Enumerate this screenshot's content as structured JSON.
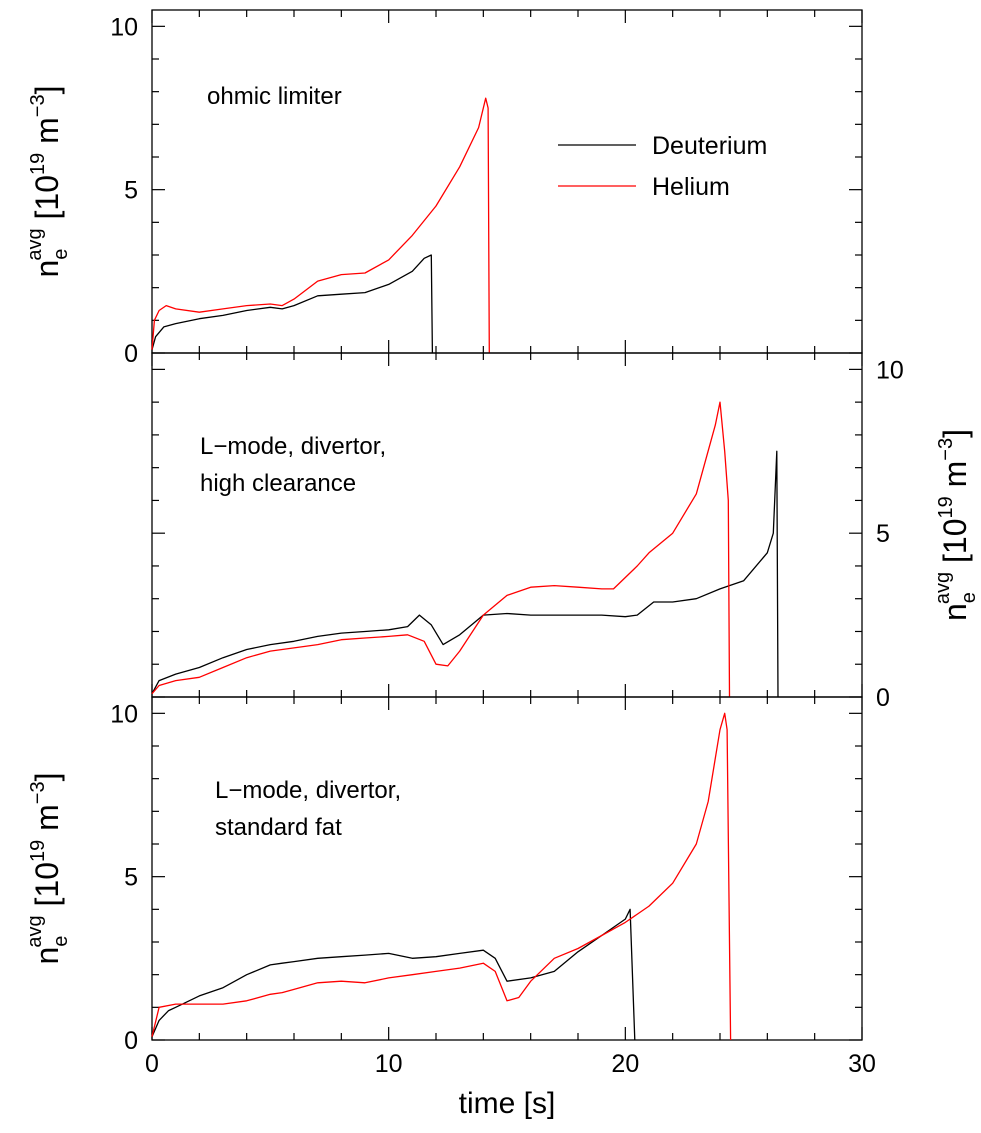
{
  "chart_data": {
    "type": "line",
    "xlabel": "time [s]",
    "xlim": [
      0,
      30
    ],
    "x_ticks": [
      "0",
      "10",
      "20",
      "30"
    ],
    "y_ticks": [
      "0",
      "5",
      "10"
    ],
    "ylabel": {
      "main": "n",
      "sub": "e",
      "sup": "avg",
      "unit_open": "[10",
      "unit_exp": "19",
      "unit_mid": " m",
      "unit_exp2": "−3",
      "unit_close": "]"
    },
    "legend": {
      "position": "top-right of top panel",
      "entries": [
        {
          "name": "Deuterium",
          "color": "#000000"
        },
        {
          "name": "Helium",
          "color": "#ff0000"
        }
      ]
    },
    "panels": [
      {
        "annotation": [
          "ohmic limiter"
        ],
        "ylim": [
          0,
          10.5
        ],
        "ylabel_side": "left",
        "series": [
          {
            "name": "Deuterium",
            "color": "#000000",
            "points": [
              [
                0,
                0.1
              ],
              [
                0.15,
                0.5
              ],
              [
                0.5,
                0.8
              ],
              [
                1,
                0.9
              ],
              [
                2,
                1.05
              ],
              [
                3,
                1.15
              ],
              [
                4,
                1.3
              ],
              [
                5,
                1.4
              ],
              [
                5.5,
                1.35
              ],
              [
                6,
                1.45
              ],
              [
                7,
                1.75
              ],
              [
                8,
                1.8
              ],
              [
                9,
                1.85
              ],
              [
                10,
                2.1
              ],
              [
                11,
                2.5
              ],
              [
                11.5,
                2.9
              ],
              [
                11.8,
                3.0
              ],
              [
                11.85,
                0.0
              ]
            ]
          },
          {
            "name": "Helium",
            "color": "#ff0000",
            "points": [
              [
                0,
                0.1
              ],
              [
                0.1,
                1.0
              ],
              [
                0.3,
                1.3
              ],
              [
                0.6,
                1.45
              ],
              [
                1,
                1.35
              ],
              [
                2,
                1.25
              ],
              [
                3,
                1.35
              ],
              [
                4,
                1.45
              ],
              [
                5,
                1.5
              ],
              [
                5.5,
                1.45
              ],
              [
                6,
                1.65
              ],
              [
                7,
                2.2
              ],
              [
                8,
                2.4
              ],
              [
                9,
                2.45
              ],
              [
                10,
                2.85
              ],
              [
                11,
                3.6
              ],
              [
                12,
                4.5
              ],
              [
                13,
                5.7
              ],
              [
                13.8,
                6.9
              ],
              [
                14.1,
                7.8
              ],
              [
                14.2,
                7.5
              ],
              [
                14.25,
                0.0
              ]
            ]
          }
        ]
      },
      {
        "annotation": [
          "L−mode, divertor,",
          "high clearance"
        ],
        "ylim": [
          0,
          10.5
        ],
        "ylabel_side": "right",
        "series": [
          {
            "name": "Deuterium",
            "color": "#000000",
            "points": [
              [
                0,
                0.1
              ],
              [
                0.3,
                0.5
              ],
              [
                1,
                0.7
              ],
              [
                2,
                0.9
              ],
              [
                3,
                1.2
              ],
              [
                4,
                1.45
              ],
              [
                5,
                1.6
              ],
              [
                6,
                1.7
              ],
              [
                7,
                1.85
              ],
              [
                8,
                1.95
              ],
              [
                9,
                2.0
              ],
              [
                10,
                2.05
              ],
              [
                10.8,
                2.15
              ],
              [
                11.3,
                2.5
              ],
              [
                11.8,
                2.2
              ],
              [
                12.3,
                1.6
              ],
              [
                13,
                1.9
              ],
              [
                14,
                2.5
              ],
              [
                15,
                2.55
              ],
              [
                16,
                2.5
              ],
              [
                17,
                2.5
              ],
              [
                18,
                2.5
              ],
              [
                19,
                2.5
              ],
              [
                20,
                2.45
              ],
              [
                20.5,
                2.5
              ],
              [
                21.2,
                2.9
              ],
              [
                22,
                2.9
              ],
              [
                23,
                3.0
              ],
              [
                24,
                3.3
              ],
              [
                25,
                3.55
              ],
              [
                26,
                4.4
              ],
              [
                26.25,
                5.0
              ],
              [
                26.4,
                7.5
              ],
              [
                26.45,
                0.0
              ]
            ]
          },
          {
            "name": "Helium",
            "color": "#ff0000",
            "points": [
              [
                0,
                0.1
              ],
              [
                0.3,
                0.35
              ],
              [
                1,
                0.5
              ],
              [
                2,
                0.6
              ],
              [
                3,
                0.9
              ],
              [
                4,
                1.2
              ],
              [
                5,
                1.4
              ],
              [
                6,
                1.5
              ],
              [
                7,
                1.6
              ],
              [
                8,
                1.75
              ],
              [
                9,
                1.8
              ],
              [
                10,
                1.85
              ],
              [
                10.8,
                1.9
              ],
              [
                11.5,
                1.7
              ],
              [
                12,
                1.0
              ],
              [
                12.5,
                0.95
              ],
              [
                13,
                1.4
              ],
              [
                14,
                2.5
              ],
              [
                15,
                3.1
              ],
              [
                16,
                3.35
              ],
              [
                17,
                3.4
              ],
              [
                18,
                3.35
              ],
              [
                19,
                3.3
              ],
              [
                19.5,
                3.3
              ],
              [
                20.5,
                4.0
              ],
              [
                21,
                4.4
              ],
              [
                22,
                5.0
              ],
              [
                23,
                6.2
              ],
              [
                23.8,
                8.3
              ],
              [
                24,
                9.0
              ],
              [
                24.2,
                7.5
              ],
              [
                24.35,
                6.0
              ],
              [
                24.4,
                0.0
              ]
            ]
          }
        ]
      },
      {
        "annotation": [
          "L−mode, divertor,",
          "standard fat"
        ],
        "ylim": [
          0,
          10.5
        ],
        "ylabel_side": "left",
        "series": [
          {
            "name": "Deuterium",
            "color": "#000000",
            "points": [
              [
                0,
                0.1
              ],
              [
                0.3,
                0.6
              ],
              [
                0.7,
                0.9
              ],
              [
                1,
                1.0
              ],
              [
                2,
                1.35
              ],
              [
                3,
                1.6
              ],
              [
                4,
                2.0
              ],
              [
                5,
                2.3
              ],
              [
                5.5,
                2.35
              ],
              [
                6,
                2.4
              ],
              [
                7,
                2.5
              ],
              [
                8,
                2.55
              ],
              [
                9,
                2.6
              ],
              [
                10,
                2.65
              ],
              [
                11,
                2.5
              ],
              [
                12,
                2.55
              ],
              [
                13,
                2.65
              ],
              [
                14,
                2.75
              ],
              [
                14.5,
                2.5
              ],
              [
                15,
                1.8
              ],
              [
                16,
                1.9
              ],
              [
                17,
                2.1
              ],
              [
                18,
                2.7
              ],
              [
                19,
                3.2
              ],
              [
                20,
                3.7
              ],
              [
                20.2,
                4.0
              ],
              [
                20.4,
                0.0
              ]
            ]
          },
          {
            "name": "Helium",
            "color": "#ff0000",
            "points": [
              [
                0,
                0.1
              ],
              [
                0.3,
                1.0
              ],
              [
                1,
                1.1
              ],
              [
                2,
                1.1
              ],
              [
                3,
                1.1
              ],
              [
                4,
                1.2
              ],
              [
                5,
                1.4
              ],
              [
                5.5,
                1.45
              ],
              [
                6,
                1.55
              ],
              [
                7,
                1.75
              ],
              [
                8,
                1.8
              ],
              [
                9,
                1.75
              ],
              [
                10,
                1.9
              ],
              [
                11,
                2.0
              ],
              [
                12,
                2.1
              ],
              [
                13,
                2.2
              ],
              [
                14,
                2.35
              ],
              [
                14.5,
                2.1
              ],
              [
                15,
                1.2
              ],
              [
                15.5,
                1.3
              ],
              [
                16,
                1.8
              ],
              [
                17,
                2.5
              ],
              [
                18,
                2.8
              ],
              [
                19,
                3.2
              ],
              [
                20,
                3.6
              ],
              [
                21,
                4.1
              ],
              [
                22,
                4.8
              ],
              [
                23,
                6.0
              ],
              [
                23.5,
                7.3
              ],
              [
                24,
                9.5
              ],
              [
                24.2,
                10.0
              ],
              [
                24.3,
                9.5
              ],
              [
                24.45,
                0.0
              ]
            ]
          }
        ]
      }
    ]
  }
}
